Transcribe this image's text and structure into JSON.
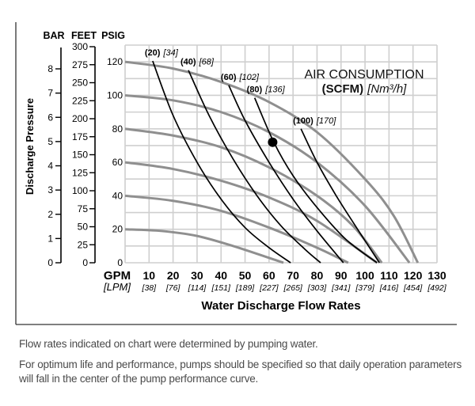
{
  "chart_data": {
    "type": "line",
    "title": "",
    "xlabel": "Water Discharge Flow Rates",
    "ylabel": "Discharge Pressure",
    "xlim": [
      0,
      130
    ],
    "ylim": [
      0,
      130
    ],
    "grid": true,
    "x_ticks": [
      {
        "gpm": "10",
        "lpm": "[38]"
      },
      {
        "gpm": "20",
        "lpm": "[76]"
      },
      {
        "gpm": "30",
        "lpm": "[114]"
      },
      {
        "gpm": "40",
        "lpm": "[151]"
      },
      {
        "gpm": "50",
        "lpm": "[189]"
      },
      {
        "gpm": "60",
        "lpm": "[227]"
      },
      {
        "gpm": "70",
        "lpm": "[265]"
      },
      {
        "gpm": "80",
        "lpm": "[303]"
      },
      {
        "gpm": "90",
        "lpm": "[341]"
      },
      {
        "gpm": "100",
        "lpm": "[379]"
      },
      {
        "gpm": "110",
        "lpm": "[416]"
      },
      {
        "gpm": "120",
        "lpm": "[454]"
      },
      {
        "gpm": "130",
        "lpm": "[492]"
      }
    ],
    "x_unit_label": "GPM",
    "x_unit_label_alt": "[LPM]",
    "psig_ticks": [
      "0",
      "20",
      "40",
      "60",
      "80",
      "100",
      "120"
    ],
    "psig_label": "PSIG",
    "feet_ticks": [
      "0",
      "25",
      "50",
      "75",
      "100",
      "125",
      "150",
      "175",
      "200",
      "225",
      "250",
      "275",
      "300"
    ],
    "feet_label": "FEET",
    "bar_ticks": [
      "0",
      "1",
      "2",
      "3",
      "4",
      "5",
      "6",
      "7",
      "8"
    ],
    "bar_label": "BAR",
    "legend_title": "AIR CONSUMPTION",
    "legend_sub_bold": "(SCFM)",
    "legend_sub_italic": "[Nm³/h]",
    "pressure_curves": [
      {
        "name": "120 psig",
        "points": [
          [
            0,
            120
          ],
          [
            20,
            116
          ],
          [
            40,
            108
          ],
          [
            60,
            96
          ],
          [
            80,
            78
          ],
          [
            100,
            50
          ],
          [
            112,
            28
          ],
          [
            122,
            0
          ]
        ]
      },
      {
        "name": "100 psig",
        "points": [
          [
            0,
            100
          ],
          [
            20,
            97
          ],
          [
            40,
            90
          ],
          [
            60,
            78
          ],
          [
            80,
            60
          ],
          [
            100,
            34
          ],
          [
            118.5,
            0
          ]
        ]
      },
      {
        "name": "80 psig",
        "points": [
          [
            0,
            80
          ],
          [
            20,
            76
          ],
          [
            40,
            69
          ],
          [
            60,
            57
          ],
          [
            80,
            40
          ],
          [
            95,
            22
          ],
          [
            107,
            0
          ]
        ]
      },
      {
        "name": "60 psig",
        "points": [
          [
            0,
            60
          ],
          [
            20,
            56
          ],
          [
            40,
            49
          ],
          [
            60,
            39
          ],
          [
            80,
            25
          ],
          [
            105,
            0
          ]
        ]
      },
      {
        "name": "40 psig",
        "points": [
          [
            0,
            40
          ],
          [
            20,
            37
          ],
          [
            40,
            31
          ],
          [
            60,
            21
          ],
          [
            80,
            9
          ],
          [
            93,
            0
          ]
        ]
      },
      {
        "name": "20 psig",
        "points": [
          [
            0,
            20
          ],
          [
            15,
            19
          ],
          [
            30,
            16
          ],
          [
            45,
            10
          ],
          [
            66,
            0
          ]
        ]
      }
    ],
    "air_curves": [
      {
        "scfm": "(20)",
        "nm3h": "[34]",
        "points": [
          [
            11.5,
            120.5
          ],
          [
            20,
            88
          ],
          [
            30,
            60
          ],
          [
            40,
            38
          ],
          [
            50,
            21
          ],
          [
            60,
            9
          ],
          [
            69,
            0
          ]
        ]
      },
      {
        "scfm": "(40)",
        "nm3h": "[68]",
        "points": [
          [
            26.4,
            115
          ],
          [
            35,
            88
          ],
          [
            45,
            62
          ],
          [
            55,
            40
          ],
          [
            65,
            22
          ],
          [
            75,
            8
          ],
          [
            81.5,
            0
          ]
        ]
      },
      {
        "scfm": "(60)",
        "nm3h": "[102]",
        "points": [
          [
            43.2,
            106
          ],
          [
            50,
            85
          ],
          [
            60,
            60
          ],
          [
            70,
            38
          ],
          [
            80,
            19
          ],
          [
            91,
            0
          ]
        ]
      },
      {
        "scfm": "(80)",
        "nm3h": "[136]",
        "points": [
          [
            54,
            98.5
          ],
          [
            62,
            72
          ],
          [
            70,
            52
          ],
          [
            80,
            33
          ],
          [
            92,
            14
          ],
          [
            105,
            0
          ]
        ]
      },
      {
        "scfm": "(100)",
        "nm3h": "[170]",
        "points": [
          [
            73.3,
            80
          ],
          [
            80,
            60
          ],
          [
            88,
            40
          ],
          [
            96,
            22
          ],
          [
            106,
            0
          ]
        ]
      }
    ],
    "marker": {
      "gpm": 61.5,
      "psig": 72
    }
  },
  "notes": [
    "Flow rates indicated on chart were determined by pumping water.",
    "For optimum life and performance, pumps should be specified so that daily operation parameters will fall in the center of the pump performance curve."
  ]
}
